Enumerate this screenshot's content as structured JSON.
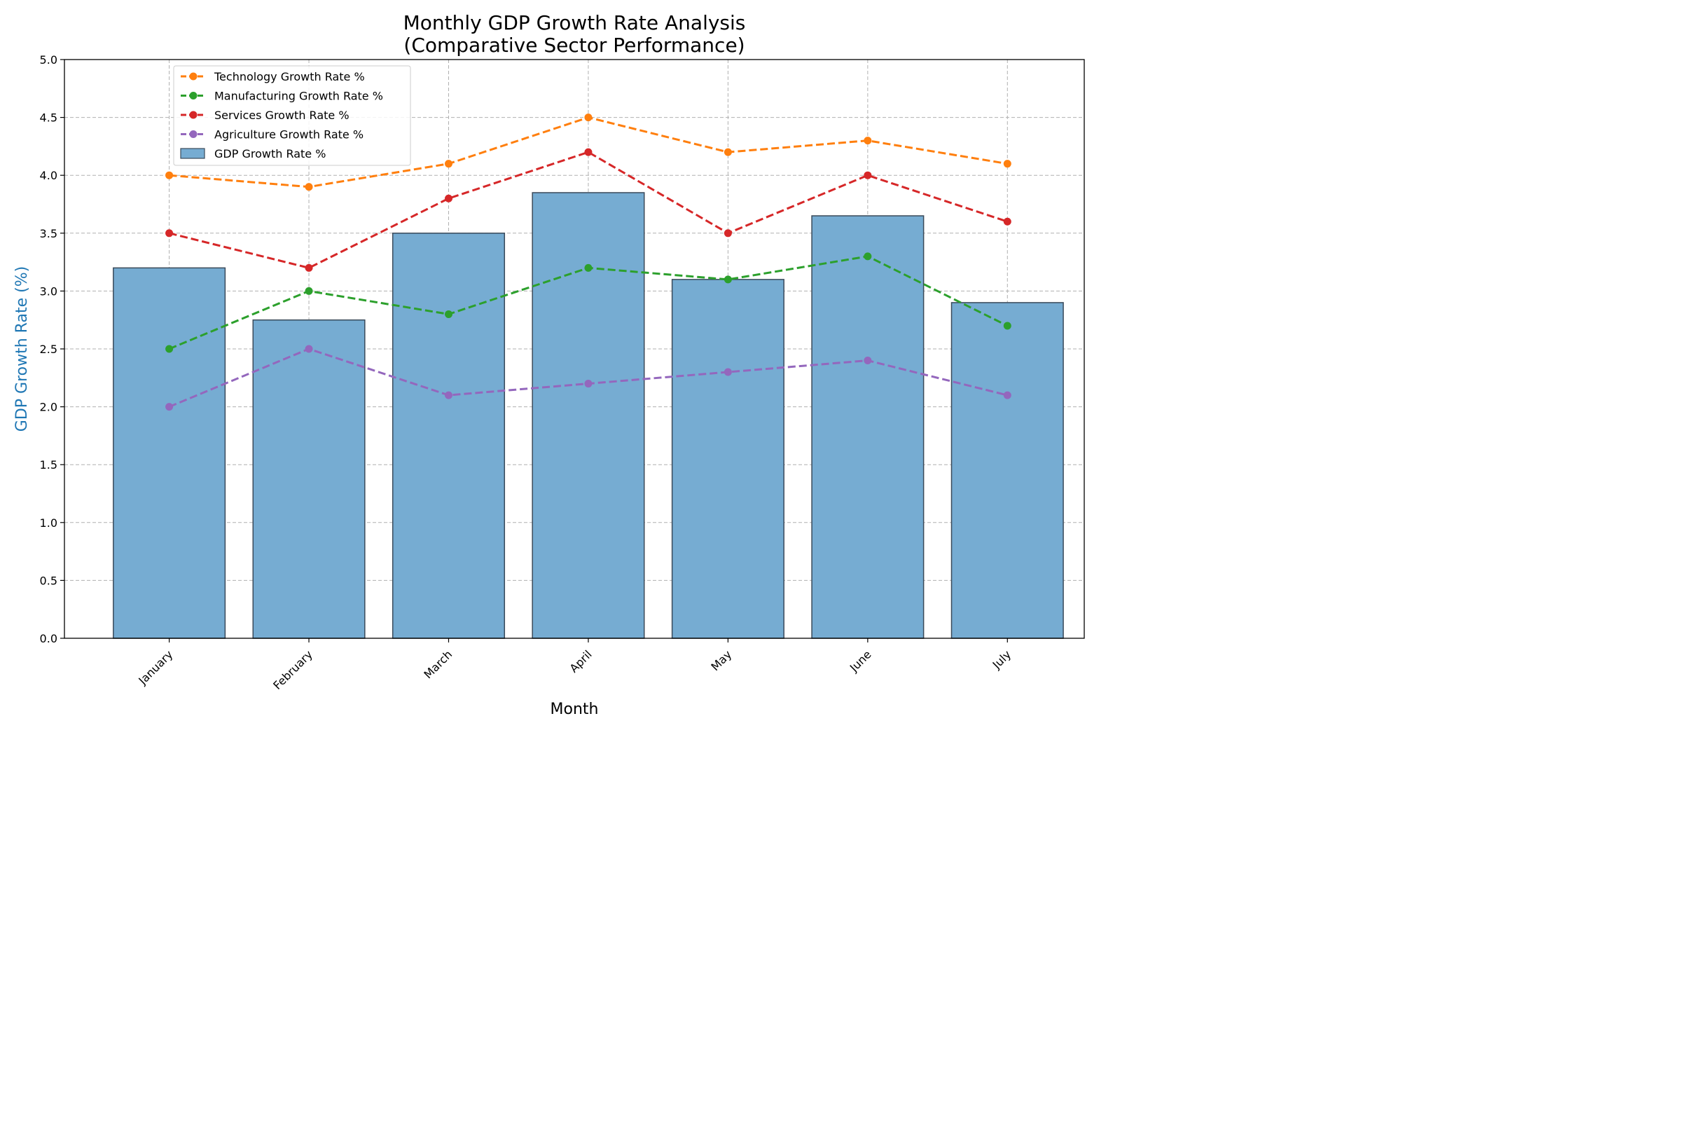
{
  "chart_data": {
    "type": "bar",
    "title": "Monthly GDP Growth Rate Analysis",
    "subtitle": "(Comparative Sector Performance)",
    "xlabel": "Month",
    "ylabel": "GDP Growth Rate (%)",
    "ylabel_color": "#1f77b4",
    "ylim": [
      0,
      5
    ],
    "yticks": [
      "0.0",
      "0.5",
      "1.0",
      "1.5",
      "2.0",
      "2.5",
      "3.0",
      "3.5",
      "4.0",
      "4.5",
      "5.0"
    ],
    "grid": true,
    "legend_position": "upper-left",
    "categories": [
      "January",
      "February",
      "March",
      "April",
      "May",
      "June",
      "July"
    ],
    "bar_series": {
      "name": "GDP Growth Rate %",
      "values": [
        3.2,
        2.75,
        3.5,
        3.85,
        3.1,
        3.65,
        2.9
      ],
      "color": "#76acd2",
      "edge_color": "#3a4a5a"
    },
    "line_series": [
      {
        "name": "Technology Growth Rate %",
        "values": [
          4.0,
          3.9,
          4.1,
          4.5,
          4.2,
          4.3,
          4.1
        ],
        "color": "#ff7f0e"
      },
      {
        "name": "Manufacturing Growth Rate %",
        "values": [
          2.5,
          3.0,
          2.8,
          3.2,
          3.1,
          3.3,
          2.7
        ],
        "color": "#2ca02c"
      },
      {
        "name": "Services Growth Rate %",
        "values": [
          3.5,
          3.2,
          3.8,
          4.2,
          3.5,
          4.0,
          3.6
        ],
        "color": "#d62728"
      },
      {
        "name": "Agriculture Growth Rate %",
        "values": [
          2.0,
          2.5,
          2.1,
          2.2,
          2.3,
          2.4,
          2.1
        ],
        "color": "#9467bd"
      }
    ]
  }
}
